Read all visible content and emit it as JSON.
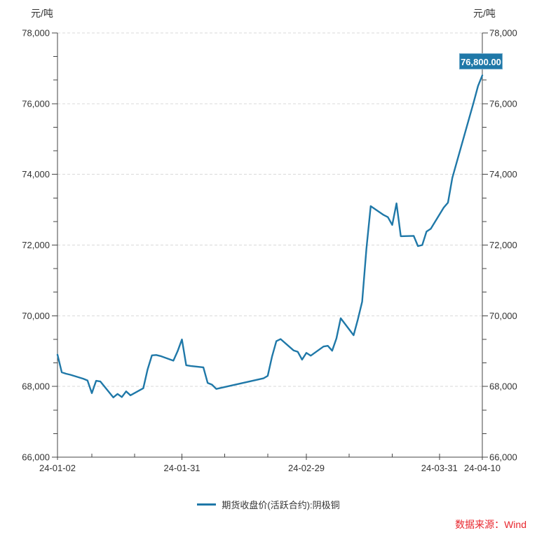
{
  "header": {
    "unit_left": "元/吨",
    "unit_right": "元/吨"
  },
  "badge": {
    "text": "76,800.00"
  },
  "legend": {
    "label": "期货收盘价(活跃合约):阴极铜"
  },
  "footer": {
    "source": "数据来源：Wind"
  },
  "colors": {
    "line": "#1f78a8",
    "badge_bg": "#1f78a8",
    "badge_border": "#6fa9c9",
    "badge_text": "#ffffff",
    "grid": "#d9d9d9",
    "axis": "#444444",
    "tick_text": "#333333",
    "source_text": "#e8262d"
  },
  "chart_data": {
    "type": "line",
    "title": "",
    "xlabel": "",
    "ylabel_left": "元/吨",
    "ylabel_right": "元/吨",
    "ylim": [
      66000,
      78000
    ],
    "y_major_ticks": [
      66000,
      68000,
      70000,
      72000,
      74000,
      76000,
      78000
    ],
    "y_minor_divisions_per_major": 3,
    "grid": "horizontal-dashed",
    "legend_position": "bottom-center",
    "x_range": [
      "2024-01-02",
      "2024-04-10"
    ],
    "x_ticks": [
      {
        "date": "2024-01-02",
        "label": "24-01-02"
      },
      {
        "date": "2024-01-10",
        "label": ""
      },
      {
        "date": "2024-01-20",
        "label": ""
      },
      {
        "date": "2024-01-31",
        "label": "24-01-31"
      },
      {
        "date": "2024-02-10",
        "label": ""
      },
      {
        "date": "2024-02-20",
        "label": ""
      },
      {
        "date": "2024-02-29",
        "label": "24-02-29"
      },
      {
        "date": "2024-03-10",
        "label": ""
      },
      {
        "date": "2024-03-20",
        "label": ""
      },
      {
        "date": "2024-03-31",
        "label": "24-03-31"
      },
      {
        "date": "2024-04-10",
        "label": "24-04-10"
      }
    ],
    "last_value_label": "76,800.00",
    "series": [
      {
        "name": "期货收盘价(活跃合约):阴极铜",
        "color": "#1f78a8",
        "points": [
          [
            "2024-01-02",
            68900
          ],
          [
            "2024-01-03",
            68400
          ],
          [
            "2024-01-04",
            68360
          ],
          [
            "2024-01-05",
            68330
          ],
          [
            "2024-01-08",
            68220
          ],
          [
            "2024-01-09",
            68170
          ],
          [
            "2024-01-10",
            67810
          ],
          [
            "2024-01-11",
            68160
          ],
          [
            "2024-01-12",
            68140
          ],
          [
            "2024-01-15",
            67690
          ],
          [
            "2024-01-16",
            67790
          ],
          [
            "2024-01-17",
            67700
          ],
          [
            "2024-01-18",
            67860
          ],
          [
            "2024-01-19",
            67750
          ],
          [
            "2024-01-22",
            67950
          ],
          [
            "2024-01-23",
            68480
          ],
          [
            "2024-01-24",
            68880
          ],
          [
            "2024-01-25",
            68890
          ],
          [
            "2024-01-26",
            68860
          ],
          [
            "2024-01-29",
            68730
          ],
          [
            "2024-01-30",
            69000
          ],
          [
            "2024-01-31",
            69330
          ],
          [
            "2024-02-01",
            68600
          ],
          [
            "2024-02-02",
            68580
          ],
          [
            "2024-02-05",
            68540
          ],
          [
            "2024-02-06",
            68100
          ],
          [
            "2024-02-07",
            68050
          ],
          [
            "2024-02-08",
            67930
          ],
          [
            "2024-02-19",
            68230
          ],
          [
            "2024-02-20",
            68300
          ],
          [
            "2024-02-21",
            68850
          ],
          [
            "2024-02-22",
            69280
          ],
          [
            "2024-02-23",
            69340
          ],
          [
            "2024-02-26",
            69020
          ],
          [
            "2024-02-27",
            68980
          ],
          [
            "2024-02-28",
            68760
          ],
          [
            "2024-02-29",
            68950
          ],
          [
            "2024-03-01",
            68870
          ],
          [
            "2024-03-04",
            69130
          ],
          [
            "2024-03-05",
            69150
          ],
          [
            "2024-03-06",
            69010
          ],
          [
            "2024-03-07",
            69360
          ],
          [
            "2024-03-08",
            69930
          ],
          [
            "2024-03-11",
            69450
          ],
          [
            "2024-03-12",
            69900
          ],
          [
            "2024-03-13",
            70400
          ],
          [
            "2024-03-14",
            71900
          ],
          [
            "2024-03-15",
            73100
          ],
          [
            "2024-03-18",
            72850
          ],
          [
            "2024-03-19",
            72790
          ],
          [
            "2024-03-20",
            72570
          ],
          [
            "2024-03-21",
            73180
          ],
          [
            "2024-03-22",
            72250
          ],
          [
            "2024-03-25",
            72260
          ],
          [
            "2024-03-26",
            71970
          ],
          [
            "2024-03-27",
            72000
          ],
          [
            "2024-03-28",
            72380
          ],
          [
            "2024-03-29",
            72460
          ],
          [
            "2024-04-01",
            73060
          ],
          [
            "2024-04-02",
            73200
          ],
          [
            "2024-04-03",
            73900
          ],
          [
            "2024-04-08",
            76050
          ],
          [
            "2024-04-09",
            76500
          ],
          [
            "2024-04-10",
            76800
          ]
        ]
      }
    ]
  }
}
